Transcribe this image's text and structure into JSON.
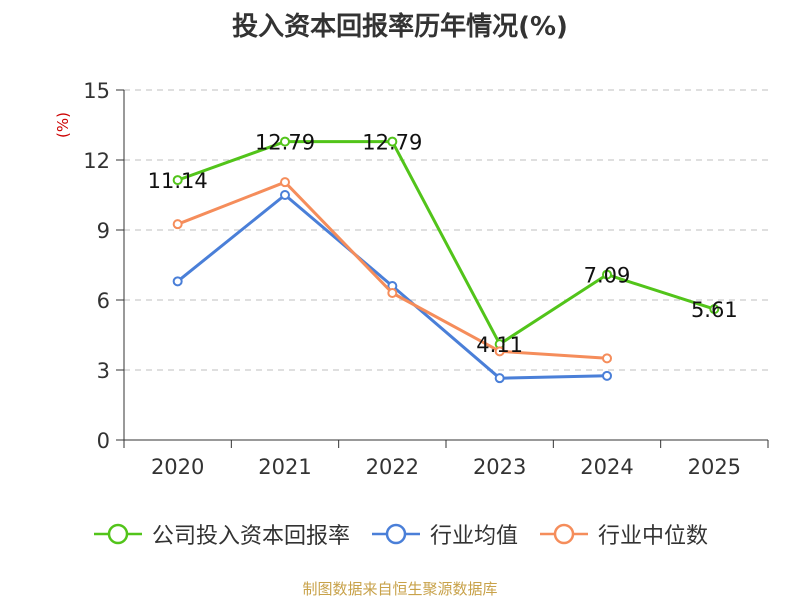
{
  "chart_data": {
    "type": "line",
    "title": "投入资本回报率历年情况(%)",
    "ylabel": "(%)",
    "xlabel": "",
    "categories": [
      "2020",
      "2021",
      "2022",
      "2023",
      "2024",
      "2025"
    ],
    "ylim": [
      0,
      15
    ],
    "yticks": [
      0,
      3,
      6,
      9,
      12,
      15
    ],
    "grid": true,
    "series": [
      {
        "name": "公司投入资本回报率",
        "color": "#52c41a",
        "values": [
          11.14,
          12.79,
          12.79,
          4.11,
          7.09,
          5.61
        ],
        "labels": [
          "11.14",
          "12.79",
          "12.79",
          "4.11",
          "7.09",
          "5.61"
        ]
      },
      {
        "name": "行业均值",
        "color": "#4a7fd8",
        "values": [
          6.8,
          10.5,
          6.6,
          2.65,
          2.75,
          null
        ]
      },
      {
        "name": "行业中位数",
        "color": "#f58d5b",
        "values": [
          9.25,
          11.05,
          6.3,
          3.8,
          3.5,
          null
        ]
      }
    ]
  },
  "source": "制图数据来自恒生聚源数据库"
}
